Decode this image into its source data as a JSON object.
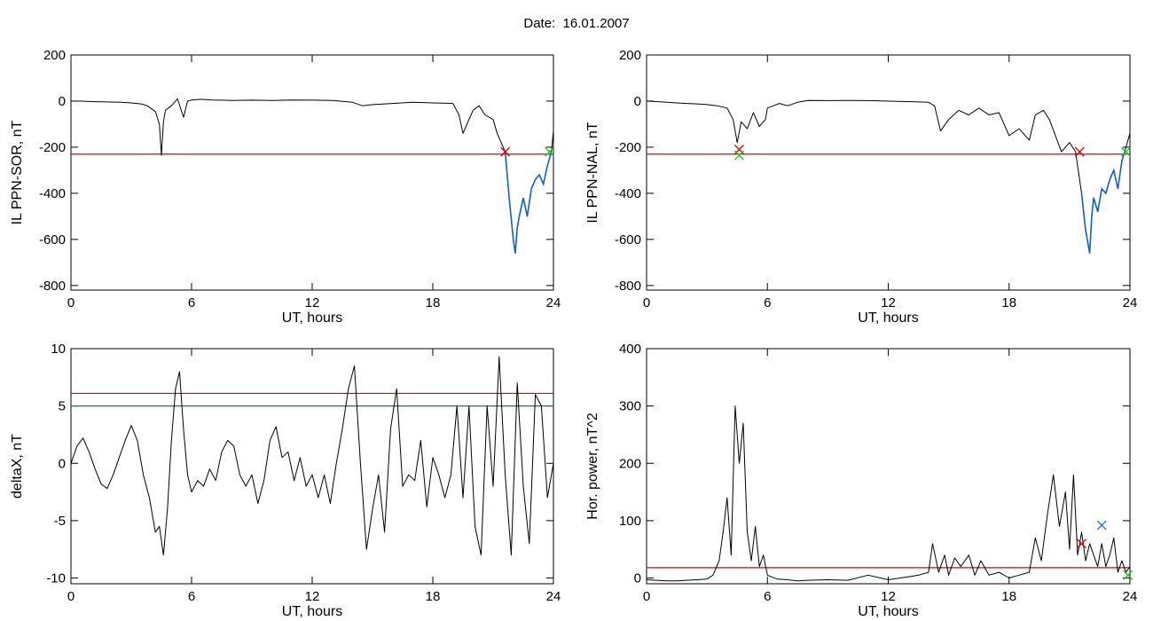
{
  "page": {
    "title": "Date:  16.01.2007"
  },
  "colors": {
    "axis": "#000000",
    "signal": "#000000",
    "threshold": "#e00000",
    "threshold2": "#008080",
    "highlight": "#1060d0",
    "marker_start": "#e00000",
    "marker_end": "#20c020",
    "marker_peak": "#2060e0"
  },
  "chart_data": [
    {
      "id": "sor",
      "type": "line",
      "xlabel": "UT, hours",
      "ylabel": "IL PPN-SOR, nT",
      "xlim": [
        0,
        24
      ],
      "ylim": [
        -820,
        200
      ],
      "xticks": [
        0,
        6,
        12,
        18,
        24
      ],
      "yticks": [
        -800,
        -600,
        -400,
        -200,
        0,
        200
      ],
      "series": [
        {
          "values_x": [
            0,
            0.5,
            1,
            1.5,
            2,
            2.5,
            3,
            3.5,
            3.8,
            4.2,
            4.4,
            4.5,
            4.6,
            4.7,
            5,
            5.3,
            5.6,
            5.8,
            6,
            6.5,
            7,
            8,
            9,
            10,
            11,
            12,
            13,
            14,
            14.5,
            15,
            16,
            17,
            18,
            19,
            19.3,
            19.5,
            19.7,
            20,
            20.3,
            20.6,
            21,
            21.2,
            21.4,
            21.6,
            21.8,
            22,
            22.1,
            22.2,
            22.3,
            22.5,
            22.7,
            22.9,
            23.1,
            23.3,
            23.5,
            23.7,
            23.9,
            24
          ],
          "values_y": [
            0,
            0,
            -2,
            -3,
            -4,
            -5,
            -8,
            -12,
            -20,
            -45,
            -100,
            -235,
            -90,
            -40,
            -20,
            10,
            -70,
            0,
            5,
            8,
            5,
            3,
            4,
            3,
            5,
            4,
            3,
            -5,
            -20,
            -15,
            -10,
            -5,
            -8,
            -10,
            -60,
            -140,
            -100,
            -40,
            -20,
            -60,
            -80,
            -140,
            -180,
            -220,
            -420,
            -600,
            -660,
            -550,
            -500,
            -420,
            -500,
            -380,
            -340,
            -320,
            -360,
            -280,
            -220,
            -130
          ]
        }
      ],
      "thresholds": [
        {
          "y": -230
        }
      ],
      "highlight": {
        "x_start": 21.6,
        "x_end": 23.9
      },
      "markers": [
        {
          "x": 21.6,
          "y": -220,
          "kind": "start"
        },
        {
          "x": 23.8,
          "y": -220,
          "kind": "end"
        }
      ]
    },
    {
      "id": "nal",
      "type": "line",
      "xlabel": "UT, hours",
      "ylabel": "IL PPN-NAL, nT",
      "xlim": [
        0,
        24
      ],
      "ylim": [
        -820,
        200
      ],
      "xticks": [
        0,
        6,
        12,
        18,
        24
      ],
      "yticks": [
        -800,
        -600,
        -400,
        -200,
        0,
        200
      ],
      "series": [
        {
          "values_x": [
            0,
            0.5,
            1,
            1.5,
            2,
            2.5,
            3,
            3.5,
            4,
            4.3,
            4.5,
            4.7,
            5,
            5.3,
            5.6,
            5.9,
            6,
            6.3,
            6.6,
            7,
            7.5,
            8,
            9,
            10,
            11,
            12,
            13,
            14,
            14.3,
            14.6,
            15,
            15.5,
            16,
            16.5,
            17,
            17.5,
            18,
            18.5,
            19,
            19.3,
            19.7,
            20,
            20.3,
            20.6,
            21,
            21.3,
            21.6,
            21.8,
            22,
            22.1,
            22.2,
            22.4,
            22.6,
            22.8,
            23,
            23.2,
            23.4,
            23.6,
            23.8,
            24
          ],
          "values_y": [
            0,
            -2,
            -5,
            -8,
            -10,
            -12,
            -15,
            -20,
            -30,
            -80,
            -180,
            -90,
            -120,
            -50,
            -110,
            -80,
            -30,
            -20,
            -10,
            -20,
            -5,
            3,
            2,
            3,
            2,
            0,
            -2,
            -5,
            -20,
            -130,
            -80,
            -40,
            -60,
            -30,
            -60,
            -50,
            -150,
            -120,
            -170,
            -60,
            -40,
            -80,
            -150,
            -220,
            -180,
            -220,
            -400,
            -560,
            -660,
            -500,
            -420,
            -480,
            -380,
            -400,
            -340,
            -300,
            -380,
            -260,
            -200,
            -140
          ]
        }
      ],
      "thresholds": [
        {
          "y": -230
        }
      ],
      "highlight": {
        "x_start": 21.5,
        "x_end": 23.9
      },
      "markers": [
        {
          "x": 4.6,
          "y": -210,
          "kind": "start"
        },
        {
          "x": 4.6,
          "y": -235,
          "kind": "end"
        },
        {
          "x": 21.5,
          "y": -220,
          "kind": "start"
        },
        {
          "x": 23.8,
          "y": -220,
          "kind": "end"
        }
      ]
    },
    {
      "id": "deltax",
      "type": "line",
      "xlabel": "UT, hours",
      "ylabel": "deltaX, nT",
      "xlim": [
        0,
        24
      ],
      "ylim": [
        -10.5,
        10
      ],
      "xticks": [
        0,
        6,
        12,
        18,
        24
      ],
      "yticks": [
        -10,
        -5,
        0,
        5,
        10
      ],
      "series": [
        {
          "values_x": [
            0,
            0.3,
            0.6,
            0.9,
            1.2,
            1.5,
            1.8,
            2.1,
            2.4,
            2.7,
            3,
            3.3,
            3.6,
            3.9,
            4.2,
            4.4,
            4.6,
            4.8,
            5,
            5.2,
            5.4,
            5.6,
            5.8,
            6,
            6.3,
            6.6,
            6.9,
            7.2,
            7.5,
            7.8,
            8.1,
            8.4,
            8.7,
            9,
            9.3,
            9.6,
            9.9,
            10.2,
            10.5,
            10.8,
            11.1,
            11.4,
            11.7,
            12,
            12.3,
            12.6,
            12.9,
            13.2,
            13.5,
            13.8,
            14.1,
            14.4,
            14.7,
            15,
            15.3,
            15.6,
            15.9,
            16.2,
            16.5,
            16.8,
            17.1,
            17.4,
            17.7,
            18,
            18.3,
            18.6,
            18.9,
            19.2,
            19.5,
            19.8,
            20.1,
            20.4,
            20.7,
            21,
            21.3,
            21.6,
            21.9,
            22.2,
            22.5,
            22.8,
            23.1,
            23.4,
            23.7,
            24
          ],
          "values_y": [
            0,
            1.5,
            2.2,
            1,
            -0.5,
            -1.8,
            -2.2,
            -1,
            0.5,
            2,
            3.3,
            2,
            -1,
            -3,
            -6,
            -5.5,
            -8,
            -4,
            2,
            6.5,
            8,
            3,
            -1,
            -2.5,
            -1.5,
            -2,
            -0.5,
            -1.5,
            1,
            2,
            1.5,
            -1,
            -2,
            -1,
            -3.5,
            -1.5,
            2,
            3.2,
            0.5,
            1,
            -1.5,
            0.5,
            -2,
            -1,
            -3,
            -1,
            -3.5,
            0,
            3,
            6.5,
            8.5,
            0,
            -7.5,
            -4,
            -1,
            -6,
            3,
            6.5,
            -2,
            -1,
            -1.5,
            2,
            -3.8,
            0.5,
            -1,
            -3,
            -1,
            5,
            -3,
            5,
            -5.5,
            -8,
            5,
            -2,
            9.3,
            -1,
            -8,
            7,
            -2,
            -7,
            6,
            5,
            -3,
            0
          ]
        }
      ],
      "thresholds": [
        {
          "y": 6.1,
          "kind": "primary"
        },
        {
          "y": 5.0,
          "kind": "secondary"
        }
      ]
    },
    {
      "id": "horpower",
      "type": "line",
      "xlabel": "UT, hours",
      "ylabel": "Hor. power, nT^2",
      "xlim": [
        0,
        24
      ],
      "ylim": [
        -10,
        400
      ],
      "xticks": [
        0,
        6,
        12,
        18,
        24
      ],
      "yticks": [
        0,
        100,
        200,
        300,
        400
      ],
      "series": [
        {
          "values_x": [
            0,
            0.5,
            1,
            1.5,
            2,
            2.5,
            3,
            3.3,
            3.6,
            3.8,
            4,
            4.2,
            4.4,
            4.6,
            4.8,
            5,
            5.2,
            5.4,
            5.6,
            5.8,
            6,
            6.2,
            6.5,
            7,
            7.5,
            8,
            9,
            10,
            11,
            12,
            13,
            13.5,
            14,
            14.2,
            14.5,
            14.8,
            15,
            15.3,
            15.6,
            16,
            16.3,
            16.6,
            17,
            17.5,
            18,
            18.5,
            19,
            19.3,
            19.6,
            19.9,
            20.2,
            20.5,
            20.8,
            21,
            21.2,
            21.4,
            21.6,
            21.8,
            22,
            22.2,
            22.4,
            22.6,
            22.8,
            23,
            23.2,
            23.4,
            23.6,
            23.8,
            24
          ],
          "values_y": [
            -3,
            -4,
            -5,
            -5,
            -4,
            -3,
            -2,
            5,
            30,
            80,
            140,
            40,
            300,
            200,
            270,
            80,
            30,
            90,
            20,
            40,
            5,
            2,
            -2,
            -3,
            -5,
            -4,
            -3,
            -4,
            5,
            -3,
            2,
            5,
            10,
            60,
            10,
            40,
            5,
            35,
            20,
            40,
            5,
            30,
            5,
            10,
            0,
            5,
            10,
            70,
            30,
            110,
            180,
            90,
            150,
            50,
            180,
            40,
            80,
            30,
            60,
            40,
            20,
            60,
            20,
            40,
            70,
            10,
            30,
            10,
            20
          ]
        }
      ],
      "thresholds": [
        {
          "y": 18
        }
      ],
      "markers": [
        {
          "x": 21.6,
          "y": 60,
          "kind": "start"
        },
        {
          "x": 22.6,
          "y": 92,
          "kind": "peak"
        },
        {
          "x": 23.9,
          "y": 5,
          "kind": "end"
        }
      ]
    }
  ]
}
